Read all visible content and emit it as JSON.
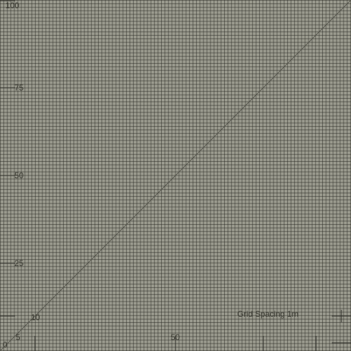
{
  "grid_spacing_label": "Grid Spacing 1m",
  "axis": {
    "origin_label": "0",
    "y_labels": [
      "100",
      "75",
      "50",
      "25"
    ],
    "x_labels": [
      "50"
    ],
    "inner_labels": [
      "5",
      "10"
    ]
  },
  "colors": {
    "background": "#9a9a8e",
    "grid_line": "#3a3a32",
    "diagonal": "#55554c"
  }
}
